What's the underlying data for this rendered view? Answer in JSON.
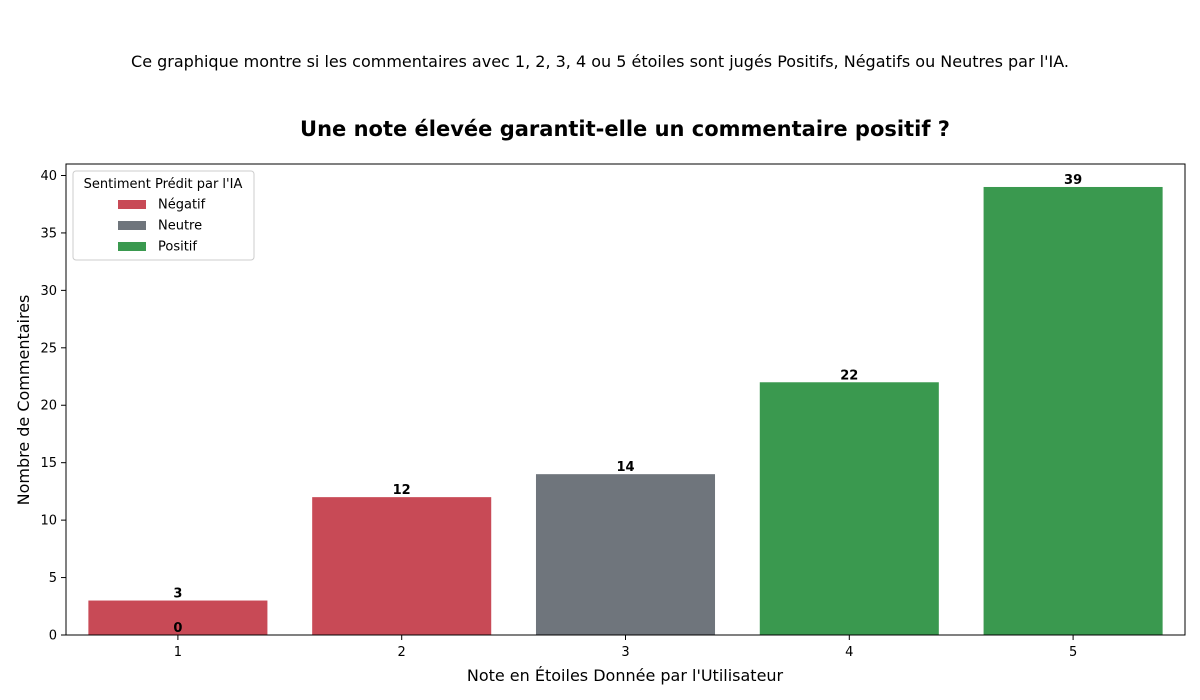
{
  "description": "Ce graphique montre si les commentaires avec 1, 2, 3, 4 ou 5 étoiles sont jugés Positifs, Négatifs ou Neutres par l'IA.",
  "chart_data": {
    "type": "bar",
    "title": "Une note élevée garantit-elle un commentaire positif ?",
    "xlabel": "Note en Étoiles Donnée par l'Utilisateur",
    "ylabel": "Nombre de Commentaires",
    "categories": [
      "1",
      "2",
      "3",
      "4",
      "5"
    ],
    "ylim": [
      0,
      41
    ],
    "yticks": [
      0,
      5,
      10,
      15,
      20,
      25,
      30,
      35,
      40
    ],
    "grid": false,
    "legend": {
      "title": "Sentiment Prédit par l'IA",
      "placement": "top-left",
      "entries": [
        {
          "name": "Négatif",
          "color": "#c84a56"
        },
        {
          "name": "Neutre",
          "color": "#6f757c"
        },
        {
          "name": "Positif",
          "color": "#3a994f"
        }
      ]
    },
    "series": [
      {
        "name": "Négatif",
        "color": "#c84a56",
        "values": [
          3,
          12,
          null,
          null,
          null
        ]
      },
      {
        "name": "Neutre",
        "color": "#6f757c",
        "values": [
          0,
          null,
          14,
          null,
          null
        ]
      },
      {
        "name": "Positif",
        "color": "#3a994f",
        "values": [
          null,
          null,
          null,
          22,
          39
        ]
      }
    ]
  }
}
